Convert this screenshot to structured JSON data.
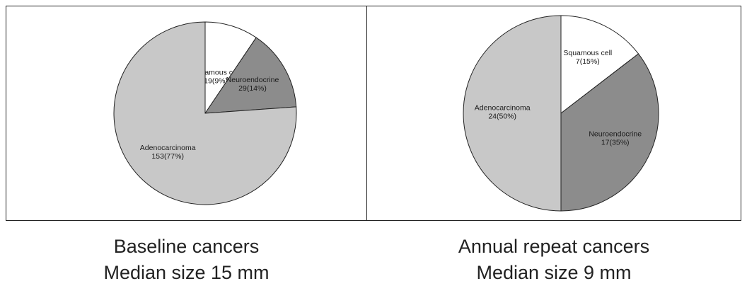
{
  "chart_data": [
    {
      "type": "pie",
      "slices": [
        {
          "label": "Squamous cell",
          "value": 19,
          "percent": 9,
          "display": "19(9%)",
          "color": "#ffffff"
        },
        {
          "label": "Neuroendocrine",
          "value": 29,
          "percent": 14,
          "display": "29(14%)",
          "color": "#8c8c8c"
        },
        {
          "label": "Adenocarcinoma",
          "value": 153,
          "percent": 77,
          "display": "153(77%)",
          "color": "#c8c8c8"
        }
      ],
      "caption": [
        "Baseline cancers",
        "Median size 15 mm"
      ]
    },
    {
      "type": "pie",
      "slices": [
        {
          "label": "Squamous cell",
          "value": 7,
          "percent": 15,
          "display": "7(15%)",
          "color": "#ffffff"
        },
        {
          "label": "Neuroendocrine",
          "value": 17,
          "percent": 35,
          "display": "17(35%)",
          "color": "#8c8c8c"
        },
        {
          "label": "Adenocarcinoma",
          "value": 24,
          "percent": 50,
          "display": "24(50%)",
          "color": "#c8c8c8"
        }
      ],
      "caption": [
        "Annual repeat cancers",
        "Median size 9 mm"
      ]
    }
  ]
}
